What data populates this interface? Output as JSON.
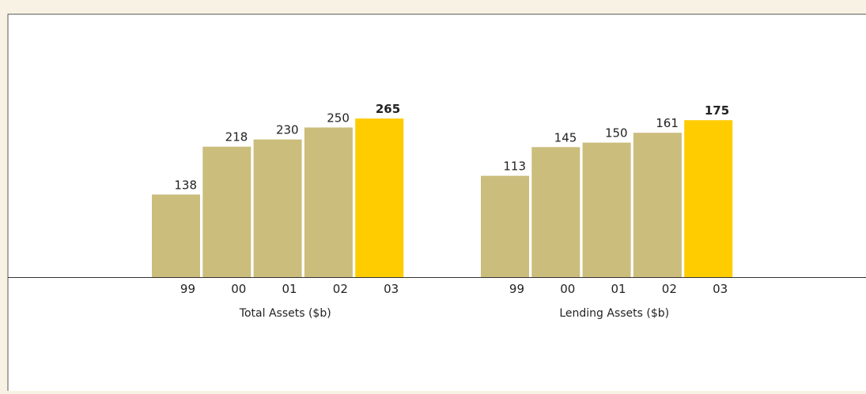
{
  "chart_data": [
    {
      "type": "bar",
      "title": "Total Assets ($b)",
      "categories": [
        "99",
        "00",
        "01",
        "02",
        "03"
      ],
      "values": [
        138,
        218,
        230,
        250,
        265
      ],
      "colors": [
        "#cbbd7c",
        "#cbbd7c",
        "#cbbd7c",
        "#cbbd7c",
        "#ffcc00"
      ],
      "ylim": [
        0,
        463
      ]
    },
    {
      "type": "bar",
      "title": "Lending Assets ($b)",
      "categories": [
        "99",
        "00",
        "01",
        "02",
        "03"
      ],
      "values": [
        113,
        145,
        150,
        161,
        175
      ],
      "colors": [
        "#cbbd7c",
        "#cbbd7c",
        "#cbbd7c",
        "#cbbd7c",
        "#ffcc00"
      ],
      "ylim": [
        0,
        309
      ]
    }
  ]
}
